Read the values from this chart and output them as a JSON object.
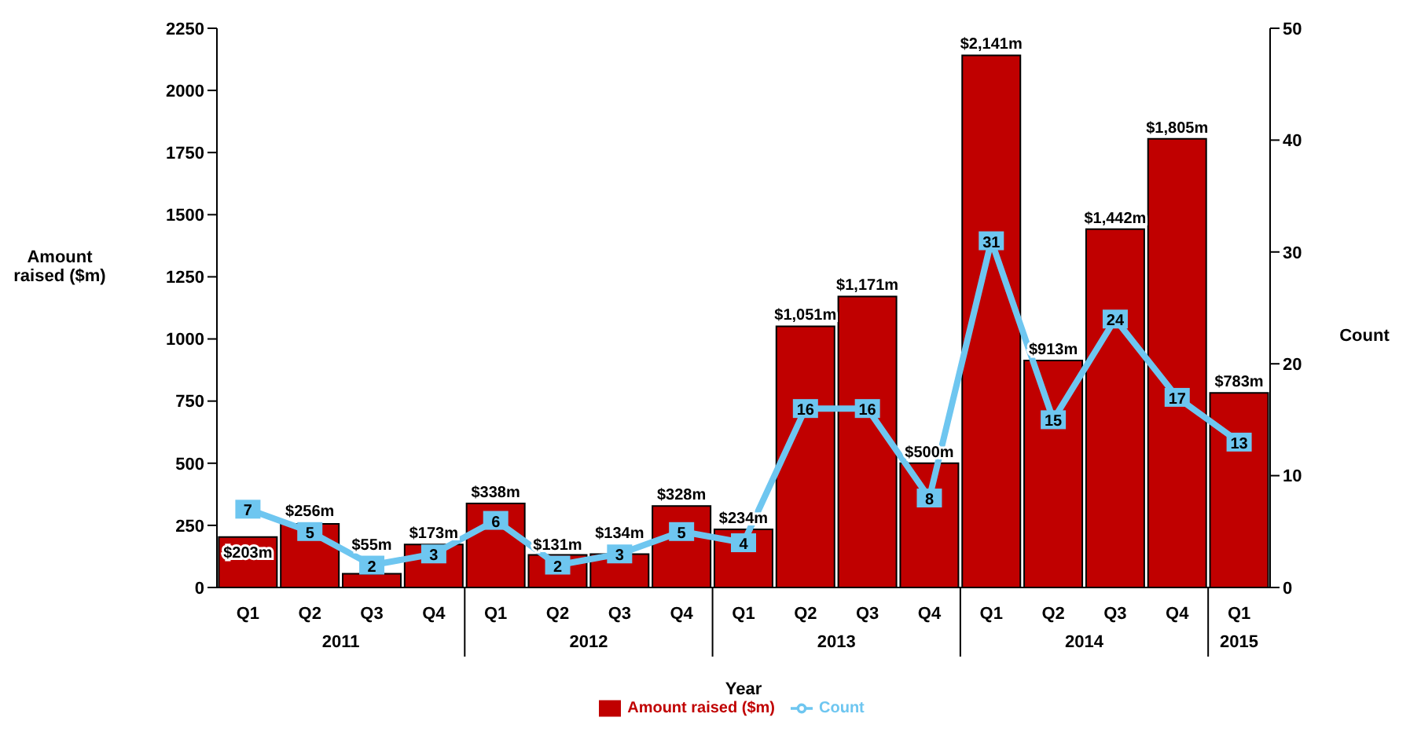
{
  "chart_data": {
    "type": "bar",
    "xlabel": "Year",
    "ylabel": "Amount raised ($m)",
    "y2label": "Count",
    "categories": [
      "Q1",
      "Q2",
      "Q3",
      "Q4",
      "Q1",
      "Q2",
      "Q3",
      "Q4",
      "Q1",
      "Q2",
      "Q3",
      "Q4",
      "Q1",
      "Q2",
      "Q3",
      "Q4",
      "Q1"
    ],
    "annotations": [
      "2011",
      "2012",
      "2013",
      "2014",
      "2015"
    ],
    "series": [
      {
        "name": "Amount raised ($m)",
        "color": "#c00000",
        "values": [
          203,
          256,
          55,
          173,
          338,
          131,
          134,
          328,
          234,
          1051,
          1171,
          500,
          2141,
          913,
          1442,
          1805,
          783
        ],
        "value_labels": [
          "$203m",
          "$256m",
          "$55m",
          "$173m",
          "$338m",
          "$131m",
          "$134m",
          "$328m",
          "$234m",
          "$1,051m",
          "$1,171m",
          "$500m",
          "$2,141m",
          "$913m",
          "$1,442m",
          "$1,805m",
          "$783m"
        ]
      },
      {
        "name": "Count",
        "type": "line",
        "axis": "y2",
        "color": "#6ec6f0",
        "values": [
          7,
          5,
          2,
          3,
          6,
          2,
          3,
          5,
          4,
          16,
          16,
          8,
          31,
          15,
          24,
          17,
          13
        ],
        "value_labels": [
          "7",
          "5",
          "2",
          "3",
          "6",
          "2",
          "3",
          "5",
          "4",
          "16",
          "16",
          "8",
          "31",
          "15",
          "24",
          "17",
          "13"
        ]
      }
    ],
    "ylim": [
      0,
      2250
    ],
    "yticks": [
      0,
      250,
      500,
      750,
      1000,
      1250,
      1500,
      1750,
      2000,
      2250
    ],
    "y2lim": [
      0,
      50
    ],
    "y2ticks": [
      0,
      10,
      20,
      30,
      40,
      50
    ],
    "marker": "square",
    "line_style": "solid",
    "legend": "bottom",
    "grid": false
  }
}
